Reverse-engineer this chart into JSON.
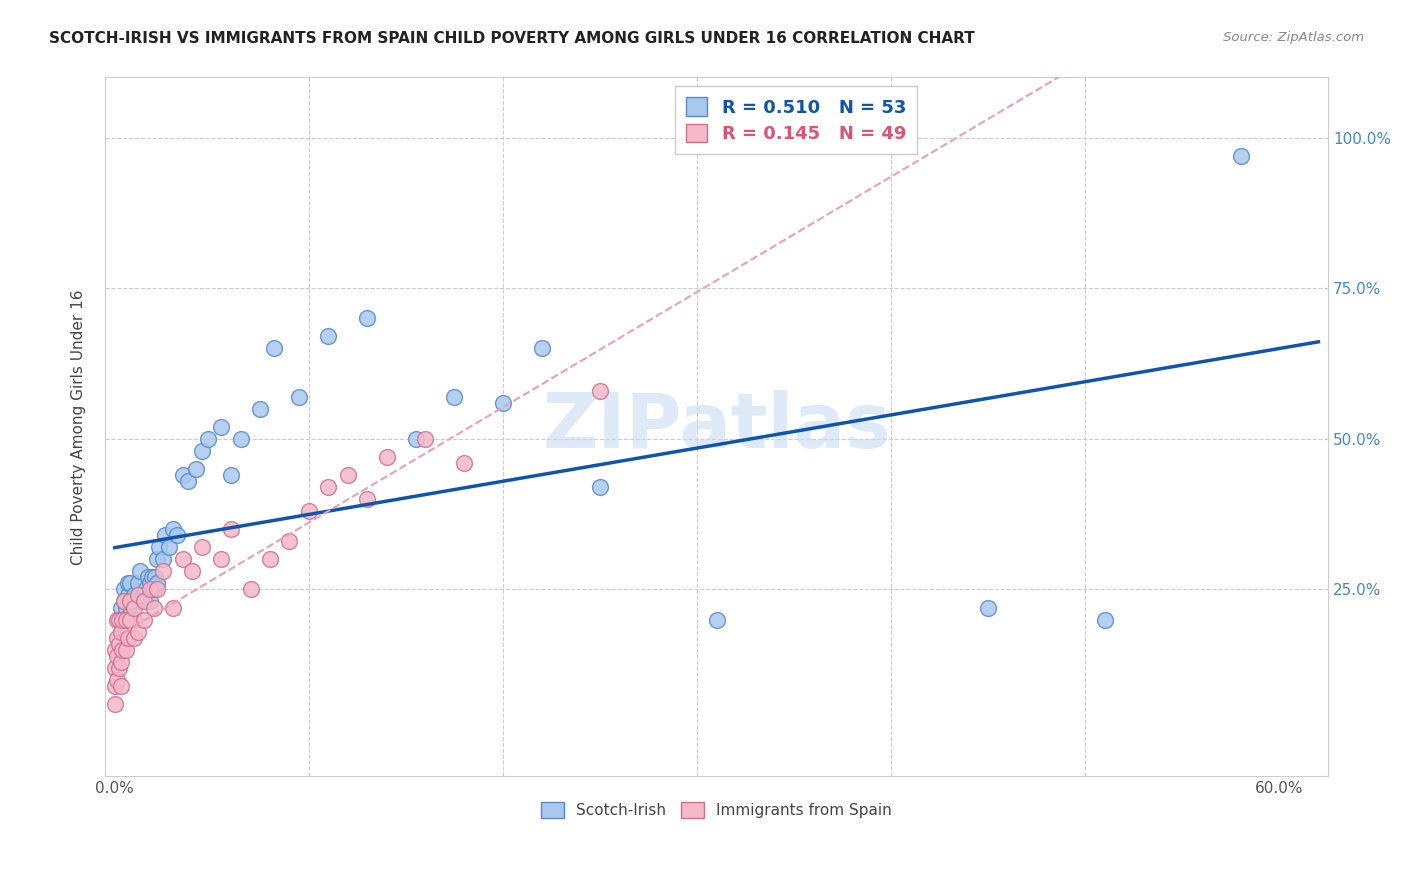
{
  "title": "SCOTCH-IRISH VS IMMIGRANTS FROM SPAIN CHILD POVERTY AMONG GIRLS UNDER 16 CORRELATION CHART",
  "source": "Source: ZipAtlas.com",
  "ylabel": "Child Poverty Among Girls Under 16",
  "xlim": [
    -0.005,
    0.625
  ],
  "ylim": [
    -0.06,
    1.1
  ],
  "blue_scatter_color": "#A8C8EE",
  "blue_scatter_edge": "#5588CC",
  "pink_scatter_color": "#F5B8C8",
  "pink_scatter_edge": "#CC7090",
  "blue_line_color": "#1155AA",
  "pink_line_color": "#E8A0B8",
  "watermark": "ZIPatlas",
  "watermark_color": "#C8DCF2",
  "background_color": "#FFFFFF",
  "legend_r1": "R = 0.510",
  "legend_n1": "N = 53",
  "legend_r2": "R = 0.145",
  "legend_n2": "N = 49",
  "scotch_irish_x": [
    0.003,
    0.003,
    0.004,
    0.005,
    0.005,
    0.006,
    0.007,
    0.007,
    0.008,
    0.008,
    0.01,
    0.01,
    0.012,
    0.012,
    0.013,
    0.015,
    0.016,
    0.017,
    0.018,
    0.018,
    0.019,
    0.02,
    0.021,
    0.022,
    0.022,
    0.023,
    0.025,
    0.026,
    0.028,
    0.03,
    0.032,
    0.035,
    0.038,
    0.042,
    0.045,
    0.048,
    0.055,
    0.06,
    0.065,
    0.075,
    0.082,
    0.095,
    0.11,
    0.13,
    0.155,
    0.175,
    0.2,
    0.22,
    0.25,
    0.31,
    0.45,
    0.51,
    0.58
  ],
  "scotch_irish_y": [
    0.18,
    0.22,
    0.2,
    0.23,
    0.25,
    0.22,
    0.24,
    0.26,
    0.21,
    0.26,
    0.2,
    0.24,
    0.23,
    0.26,
    0.28,
    0.24,
    0.25,
    0.27,
    0.23,
    0.26,
    0.27,
    0.25,
    0.27,
    0.26,
    0.3,
    0.32,
    0.3,
    0.34,
    0.32,
    0.35,
    0.34,
    0.44,
    0.43,
    0.45,
    0.48,
    0.5,
    0.52,
    0.44,
    0.5,
    0.55,
    0.65,
    0.57,
    0.67,
    0.7,
    0.5,
    0.57,
    0.56,
    0.65,
    0.42,
    0.2,
    0.22,
    0.2,
    0.97
  ],
  "spain_x": [
    0.0,
    0.0,
    0.0,
    0.0,
    0.001,
    0.001,
    0.001,
    0.001,
    0.002,
    0.002,
    0.002,
    0.003,
    0.003,
    0.003,
    0.004,
    0.004,
    0.005,
    0.006,
    0.006,
    0.007,
    0.008,
    0.008,
    0.01,
    0.01,
    0.012,
    0.012,
    0.015,
    0.015,
    0.018,
    0.02,
    0.022,
    0.025,
    0.03,
    0.035,
    0.04,
    0.045,
    0.055,
    0.06,
    0.07,
    0.08,
    0.09,
    0.1,
    0.11,
    0.12,
    0.13,
    0.14,
    0.16,
    0.18,
    0.25
  ],
  "spain_y": [
    0.06,
    0.09,
    0.12,
    0.15,
    0.1,
    0.14,
    0.17,
    0.2,
    0.12,
    0.16,
    0.2,
    0.09,
    0.13,
    0.18,
    0.15,
    0.2,
    0.23,
    0.15,
    0.2,
    0.17,
    0.2,
    0.23,
    0.17,
    0.22,
    0.18,
    0.24,
    0.2,
    0.23,
    0.25,
    0.22,
    0.25,
    0.28,
    0.22,
    0.3,
    0.28,
    0.32,
    0.3,
    0.35,
    0.25,
    0.3,
    0.33,
    0.38,
    0.42,
    0.44,
    0.4,
    0.47,
    0.5,
    0.46,
    0.58
  ]
}
